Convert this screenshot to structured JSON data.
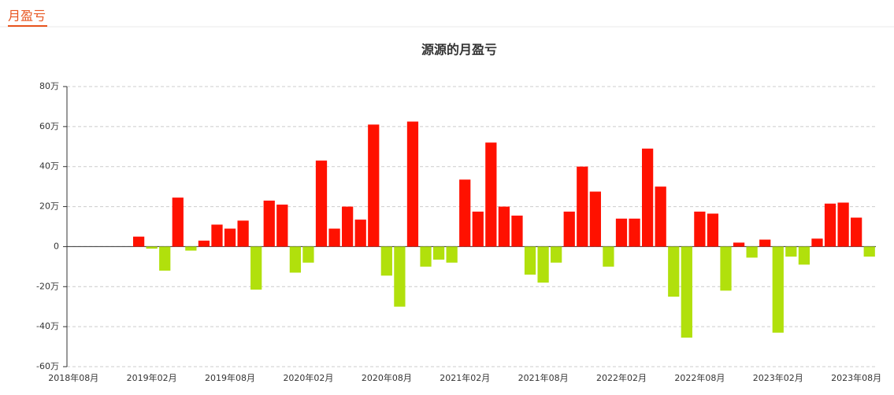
{
  "header": {
    "tab": "月盈亏"
  },
  "chart_data": {
    "type": "bar",
    "title": "源源的月盈亏",
    "categories": [
      "2018年08月",
      null,
      null,
      null,
      null,
      null,
      "2019年02月",
      null,
      null,
      null,
      null,
      null,
      "2019年08月",
      null,
      null,
      null,
      null,
      null,
      "2020年02月",
      null,
      null,
      null,
      null,
      null,
      "2020年08月",
      null,
      null,
      null,
      null,
      null,
      "2021年02月",
      null,
      null,
      null,
      null,
      null,
      "2021年08月",
      null,
      null,
      null,
      null,
      null,
      "2022年02月",
      null,
      null,
      null,
      null,
      null,
      "2022年08月",
      null,
      null,
      null,
      null,
      null,
      "2023年02月",
      null,
      null,
      null,
      null,
      null,
      "2023年08月",
      null
    ],
    "values": [
      null,
      null,
      null,
      null,
      null,
      5,
      -1,
      -12,
      24.5,
      -2,
      3,
      11,
      9,
      13,
      -21.5,
      23,
      21,
      -13,
      -8,
      43,
      9,
      20,
      13.5,
      61,
      -14.5,
      -30,
      62.5,
      -10,
      -6.5,
      -8,
      33.5,
      17.5,
      52,
      20,
      15.5,
      -14,
      -18,
      -8,
      17.5,
      40,
      27.5,
      -10,
      14,
      14,
      49,
      30,
      -25,
      -45.5,
      17.5,
      16.5,
      -22,
      2,
      -5.5,
      3.5,
      -43,
      -5,
      -9,
      4,
      21.5,
      22,
      14.5,
      -5
    ],
    "positive_color": "#ff1100",
    "negative_color": "#b1e00c",
    "ylim": [
      -60,
      80
    ],
    "yticks": [
      {
        "value": -60,
        "label": "-60万"
      },
      {
        "value": -40,
        "label": "-40万"
      },
      {
        "value": -20,
        "label": "-20万"
      },
      0,
      {
        "value": 20,
        "label": "20万"
      },
      {
        "value": 40,
        "label": "40万"
      },
      {
        "value": 60,
        "label": "60万"
      },
      {
        "value": 80,
        "label": "80万"
      }
    ],
    "grid": true
  }
}
